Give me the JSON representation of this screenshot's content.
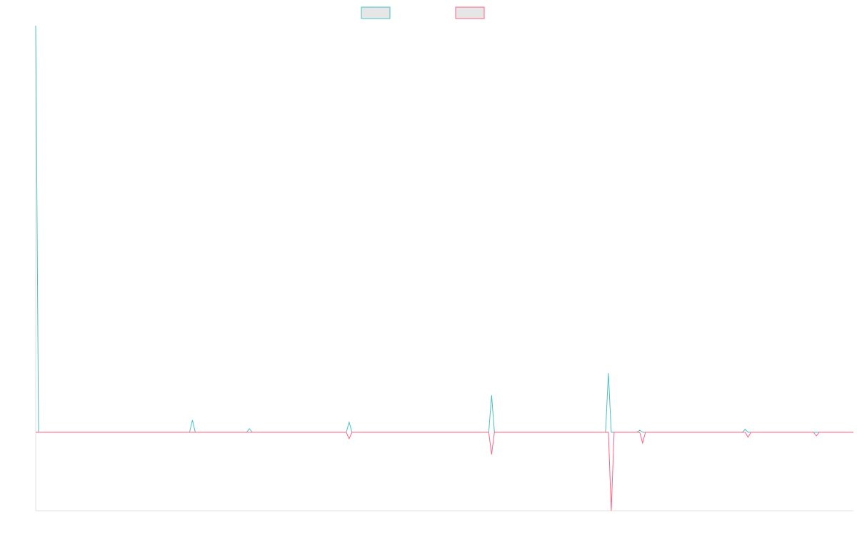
{
  "chart_data": {
    "type": "line",
    "title": "",
    "xlabel": "",
    "ylabel": "",
    "grid": false,
    "legend": {
      "position": "top-center",
      "show_labels": false
    },
    "x": [
      0,
      1,
      2,
      3,
      4,
      5,
      6,
      7,
      8,
      9,
      10,
      11,
      12,
      13,
      14,
      15,
      16,
      17,
      18,
      19,
      20,
      21,
      22,
      23,
      24,
      25,
      26,
      27,
      28,
      29,
      30,
      31,
      32,
      33,
      34,
      35,
      36,
      37,
      38,
      39,
      40,
      41,
      42,
      43,
      44,
      45,
      46,
      47,
      48,
      49,
      50,
      51,
      52,
      53,
      54,
      55,
      56,
      57,
      58,
      59,
      60,
      61,
      62,
      63,
      64,
      65,
      66,
      67,
      68,
      69,
      70,
      71,
      72,
      73,
      74,
      75,
      76,
      77,
      78,
      79,
      80,
      81,
      82,
      83,
      84,
      85,
      86,
      87,
      88,
      89,
      90,
      91,
      92,
      93,
      94,
      95,
      96,
      97,
      98,
      99,
      100,
      101,
      102,
      103,
      104,
      105,
      106,
      107,
      108,
      109,
      110,
      111,
      112,
      113,
      114,
      115,
      116,
      117,
      118,
      119,
      120,
      121,
      122,
      123,
      124,
      125,
      126,
      127,
      128,
      129,
      130,
      131,
      132,
      133,
      134,
      135,
      136,
      137,
      138,
      139,
      140,
      141,
      142,
      143,
      144,
      145,
      146,
      147,
      148,
      149,
      150,
      151,
      152,
      153,
      154,
      155,
      156,
      157,
      158,
      159,
      160,
      161,
      162,
      163,
      164,
      165,
      166,
      167,
      168,
      169,
      170,
      171,
      172,
      173,
      174,
      175,
      176,
      177,
      178,
      179,
      180,
      181,
      182,
      183,
      184,
      185,
      186,
      187,
      188,
      189,
      190,
      191,
      192,
      193,
      194,
      195,
      196,
      197,
      198,
      199,
      200,
      201,
      202,
      203,
      204,
      205,
      206,
      207,
      208,
      209,
      210,
      211,
      212,
      213,
      214,
      215,
      216,
      217,
      218,
      219,
      220,
      221,
      222,
      223,
      224,
      225,
      226,
      227,
      228,
      229,
      230,
      231,
      232,
      233,
      234,
      235,
      236,
      237,
      238,
      239,
      240,
      241,
      242,
      243,
      244,
      245,
      246,
      247,
      248,
      249,
      250,
      251,
      252,
      253,
      254,
      255,
      256,
      257,
      258,
      259,
      260,
      261,
      262,
      263,
      264,
      265,
      266,
      267,
      268,
      269,
      270,
      271,
      272,
      273,
      274,
      275,
      276,
      277,
      278,
      279,
      280,
      281,
      282,
      283,
      284,
      285,
      286,
      287
    ],
    "xlim": [
      0,
      287
    ],
    "ylim": [
      -110,
      570
    ],
    "series": [
      {
        "color": "#4bc0c0",
        "values": [
          570,
          0,
          0,
          0,
          0,
          0,
          0,
          0,
          0,
          0,
          0,
          0,
          0,
          0,
          0,
          0,
          0,
          0,
          0,
          0,
          0,
          0,
          0,
          0,
          0,
          0,
          0,
          0,
          0,
          0,
          0,
          0,
          0,
          0,
          0,
          0,
          0,
          0,
          0,
          0,
          0,
          0,
          0,
          0,
          0,
          0,
          0,
          0,
          0,
          0,
          0,
          0,
          0,
          0,
          0,
          17,
          0,
          0,
          0,
          0,
          0,
          0,
          0,
          0,
          0,
          0,
          0,
          0,
          0,
          0,
          0,
          0,
          0,
          0,
          0,
          5,
          0,
          0,
          0,
          0,
          0,
          0,
          0,
          0,
          0,
          0,
          0,
          0,
          0,
          0,
          0,
          0,
          0,
          0,
          0,
          0,
          0,
          0,
          0,
          0,
          0,
          0,
          0,
          0,
          0,
          0,
          0,
          0,
          0,
          0,
          14,
          0,
          0,
          0,
          0,
          0,
          0,
          0,
          0,
          0,
          0,
          0,
          0,
          0,
          0,
          0,
          0,
          0,
          0,
          0,
          0,
          0,
          0,
          0,
          0,
          0,
          0,
          0,
          0,
          0,
          0,
          0,
          0,
          0,
          0,
          0,
          0,
          0,
          0,
          0,
          0,
          0,
          0,
          0,
          0,
          0,
          0,
          0,
          0,
          0,
          52,
          0,
          0,
          0,
          0,
          0,
          0,
          0,
          0,
          0,
          0,
          0,
          0,
          0,
          0,
          0,
          0,
          0,
          0,
          0,
          0,
          0,
          0,
          0,
          0,
          0,
          0,
          0,
          0,
          0,
          0,
          0,
          0,
          0,
          0,
          0,
          0,
          0,
          0,
          0,
          0,
          83,
          0,
          0,
          0,
          0,
          0,
          0,
          0,
          0,
          0,
          0,
          3,
          0,
          0,
          0,
          0,
          0,
          0,
          0,
          0,
          0,
          0,
          0,
          0,
          0,
          0,
          0,
          0,
          0,
          0,
          0,
          0,
          0,
          0,
          0,
          0,
          0,
          0,
          0,
          0,
          0,
          0,
          0,
          0,
          0,
          0,
          0,
          0,
          4,
          0,
          0,
          0,
          0,
          0,
          0,
          0,
          0,
          0,
          0,
          0,
          0,
          0,
          0,
          0,
          0,
          0,
          0,
          0,
          0,
          0,
          0,
          0,
          0,
          0,
          0,
          0,
          0,
          0,
          0,
          0,
          0,
          0,
          0,
          0,
          0,
          0,
          0
        ]
      },
      {
        "color": "#ff6384",
        "values": [
          0,
          0,
          0,
          0,
          0,
          0,
          0,
          0,
          0,
          0,
          0,
          0,
          0,
          0,
          0,
          0,
          0,
          0,
          0,
          0,
          0,
          0,
          0,
          0,
          0,
          0,
          0,
          0,
          0,
          0,
          0,
          0,
          0,
          0,
          0,
          0,
          0,
          0,
          0,
          0,
          0,
          0,
          0,
          0,
          0,
          0,
          0,
          0,
          0,
          0,
          0,
          0,
          0,
          0,
          0,
          0,
          0,
          0,
          0,
          0,
          0,
          0,
          0,
          0,
          0,
          0,
          0,
          0,
          0,
          0,
          0,
          0,
          0,
          0,
          0,
          0,
          0,
          0,
          0,
          0,
          0,
          0,
          0,
          0,
          0,
          0,
          0,
          0,
          0,
          0,
          0,
          0,
          0,
          0,
          0,
          0,
          0,
          0,
          0,
          0,
          0,
          0,
          0,
          0,
          0,
          0,
          0,
          0,
          0,
          0,
          -9,
          0,
          0,
          0,
          0,
          0,
          0,
          0,
          0,
          0,
          0,
          0,
          0,
          0,
          0,
          0,
          0,
          0,
          0,
          0,
          0,
          0,
          0,
          0,
          0,
          0,
          0,
          0,
          0,
          0,
          0,
          0,
          0,
          0,
          0,
          0,
          0,
          0,
          0,
          0,
          0,
          0,
          0,
          0,
          0,
          0,
          0,
          0,
          0,
          0,
          -31,
          0,
          0,
          0,
          0,
          0,
          0,
          0,
          0,
          0,
          0,
          0,
          0,
          0,
          0,
          0,
          0,
          0,
          0,
          0,
          0,
          0,
          0,
          0,
          0,
          0,
          0,
          0,
          0,
          0,
          0,
          0,
          0,
          0,
          0,
          0,
          0,
          0,
          0,
          0,
          0,
          0,
          -110,
          0,
          0,
          0,
          0,
          0,
          0,
          0,
          0,
          0,
          0,
          -15,
          0,
          0,
          0,
          0,
          0,
          0,
          0,
          0,
          0,
          0,
          0,
          0,
          0,
          0,
          0,
          0,
          0,
          0,
          0,
          0,
          0,
          0,
          0,
          0,
          0,
          0,
          0,
          0,
          0,
          0,
          0,
          0,
          0,
          0,
          0,
          0,
          -7,
          0,
          0,
          0,
          0,
          0,
          0,
          0,
          0,
          0,
          0,
          0,
          0,
          0,
          0,
          0,
          0,
          0,
          0,
          0,
          0,
          0,
          0,
          0,
          -5,
          0,
          0,
          0,
          0,
          0,
          0,
          0,
          0,
          0,
          0,
          0,
          0,
          0
        ]
      }
    ]
  }
}
